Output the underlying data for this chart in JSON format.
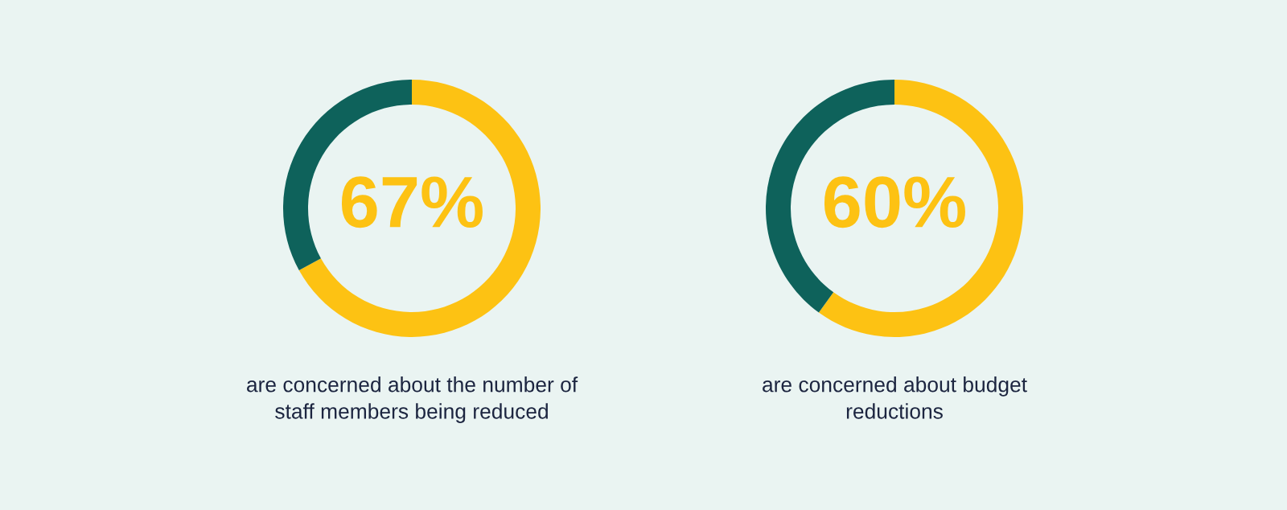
{
  "chart_data": [
    {
      "type": "donut",
      "categories": [
        null,
        null
      ],
      "values": [
        67,
        33
      ],
      "colors": [
        "#fdc213",
        "#0e625b"
      ],
      "value_labels": [
        "67%",
        null
      ],
      "annotations": [
        "are concerned about the number of\nstaff members being reduced"
      ]
    },
    {
      "type": "donut",
      "categories": [
        null,
        null
      ],
      "values": [
        60,
        40
      ],
      "colors": [
        "#fdc213",
        "#0e625b"
      ],
      "value_labels": [
        "60%",
        null
      ],
      "annotations": [
        "are concerned about budget\nreductions"
      ]
    }
  ]
}
